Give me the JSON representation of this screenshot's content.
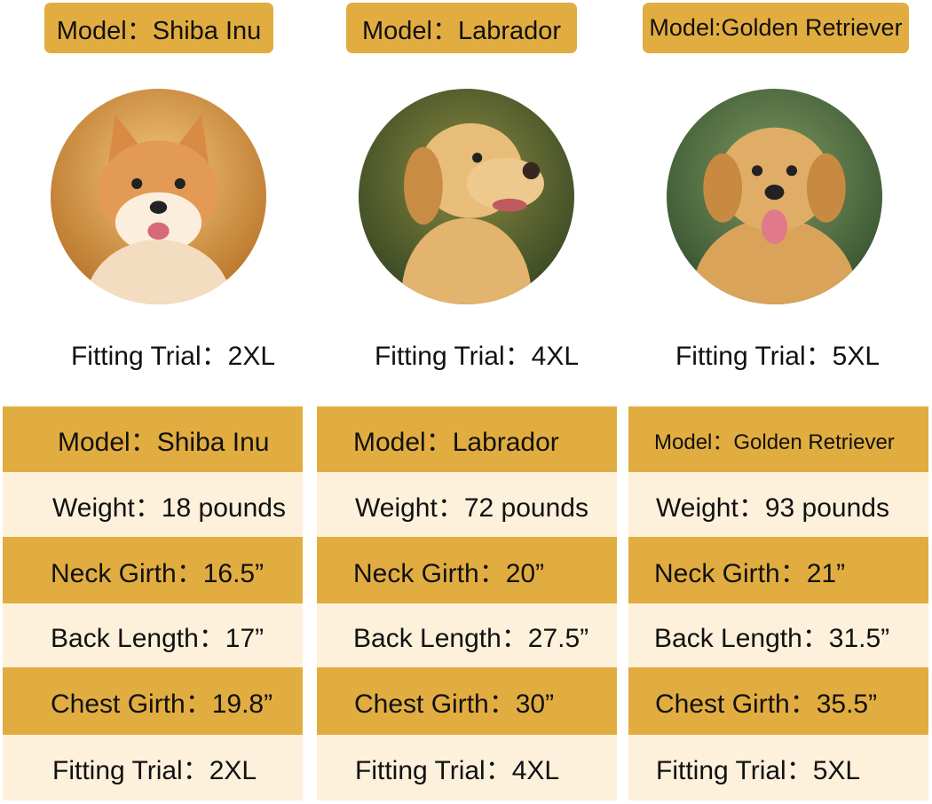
{
  "colors": {
    "gold": "#e2ad40",
    "cream": "#fdf1dc"
  },
  "dogs": [
    {
      "model_label": "Model：Shiba Inu",
      "photo": "shiba-inu-photo",
      "fitting_trial_caption": "Fitting Trial：2XL",
      "table": {
        "model": "Model：Shiba Inu",
        "weight": "Weight：18 pounds",
        "neck_girth": "Neck Girth：16.5”",
        "back_length": "Back Length：17”",
        "chest_girth": "Chest Girth：19.8”",
        "fitting_trial": "Fitting Trial：2XL"
      }
    },
    {
      "model_label": "Model：Labrador",
      "photo": "labrador-photo",
      "fitting_trial_caption": "Fitting Trial：4XL",
      "table": {
        "model": "Model：Labrador",
        "weight": "Weight：72 pounds",
        "neck_girth": "Neck Girth：20”",
        "back_length": "Back Length：27.5”",
        "chest_girth": "Chest Girth：30”",
        "fitting_trial": "Fitting Trial：4XL"
      }
    },
    {
      "model_label": "Model:Golden Retriever",
      "photo": "golden-retriever-photo",
      "fitting_trial_caption": "Fitting Trial：5XL",
      "table": {
        "model": "Model：Golden Retriever",
        "weight": "Weight：93 pounds",
        "neck_girth": "Neck Girth：21”",
        "back_length": "Back Length：31.5”",
        "chest_girth": "Chest Girth：35.5”",
        "fitting_trial": "Fitting Trial：5XL"
      }
    }
  ]
}
